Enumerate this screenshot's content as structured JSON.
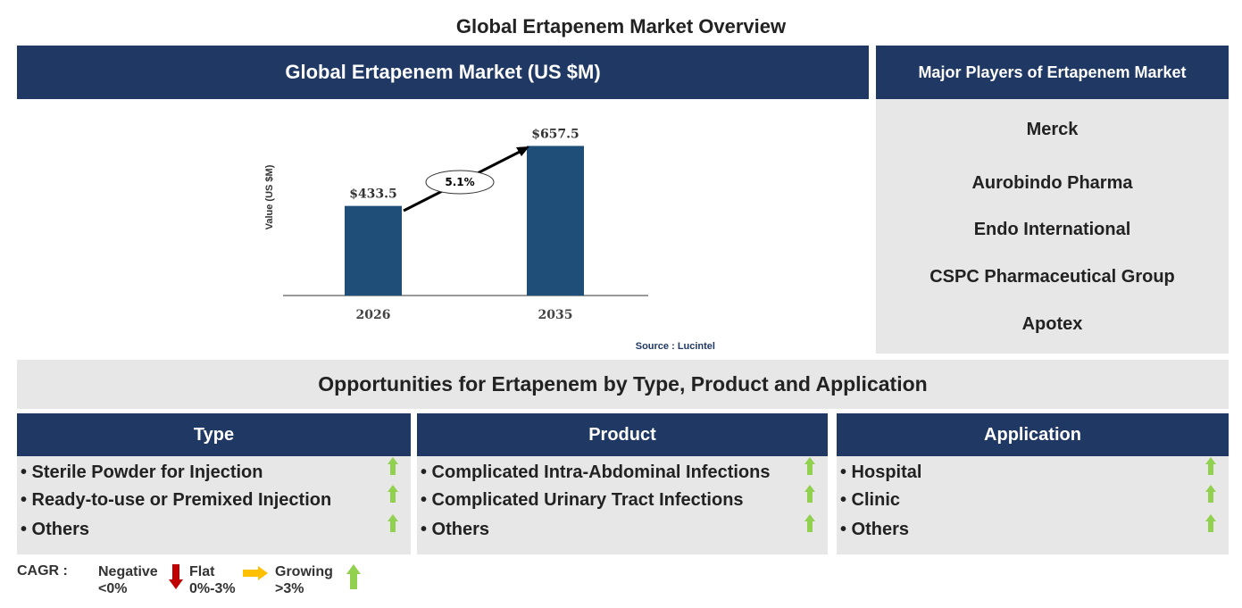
{
  "title": "Global Ertapenem Market Overview",
  "chart_panel": {
    "header": "Global Ertapenem Market (US $M)",
    "source": "Source : Lucintel"
  },
  "chart_data": {
    "type": "bar",
    "categories": [
      "2026",
      "2035"
    ],
    "values": [
      433.5,
      657.5
    ],
    "labels": [
      "$433.5",
      "$657.5"
    ],
    "ylabel": "Value (US $M)",
    "annotation": "5.1%",
    "bar_color": "#1f4e79"
  },
  "players": {
    "header": "Major Players of Ertapenem Market",
    "items": [
      "Merck",
      "Aurobindo Pharma",
      "Endo International",
      "CSPC Pharmaceutical Group",
      "Apotex"
    ]
  },
  "opportunities": {
    "header": "Opportunities for Ertapenem by Type, Product and Application",
    "columns": [
      {
        "title": "Type",
        "items": [
          "• Sterile Powder for Injection",
          "• Ready-to-use or Premixed Injection",
          "• Others"
        ],
        "trend": [
          "growing",
          "growing",
          "growing"
        ]
      },
      {
        "title": "Product",
        "items": [
          "• Complicated Intra-Abdominal Infections",
          "• Complicated Urinary Tract Infections",
          "• Others"
        ],
        "trend": [
          "growing",
          "growing",
          "growing"
        ]
      },
      {
        "title": "Application",
        "items": [
          "• Hospital",
          "• Clinic",
          "• Others"
        ],
        "trend": [
          "growing",
          "growing",
          "growing"
        ]
      }
    ]
  },
  "legend": {
    "label": "CAGR :",
    "negative": "Negative",
    "negative_range": "<0%",
    "flat": "Flat",
    "flat_range": "0%-3%",
    "growing": "Growing",
    "growing_range": ">3%",
    "colors": {
      "negative": "#c00000",
      "flat": "#ffc000",
      "growing": "#92d050"
    }
  }
}
